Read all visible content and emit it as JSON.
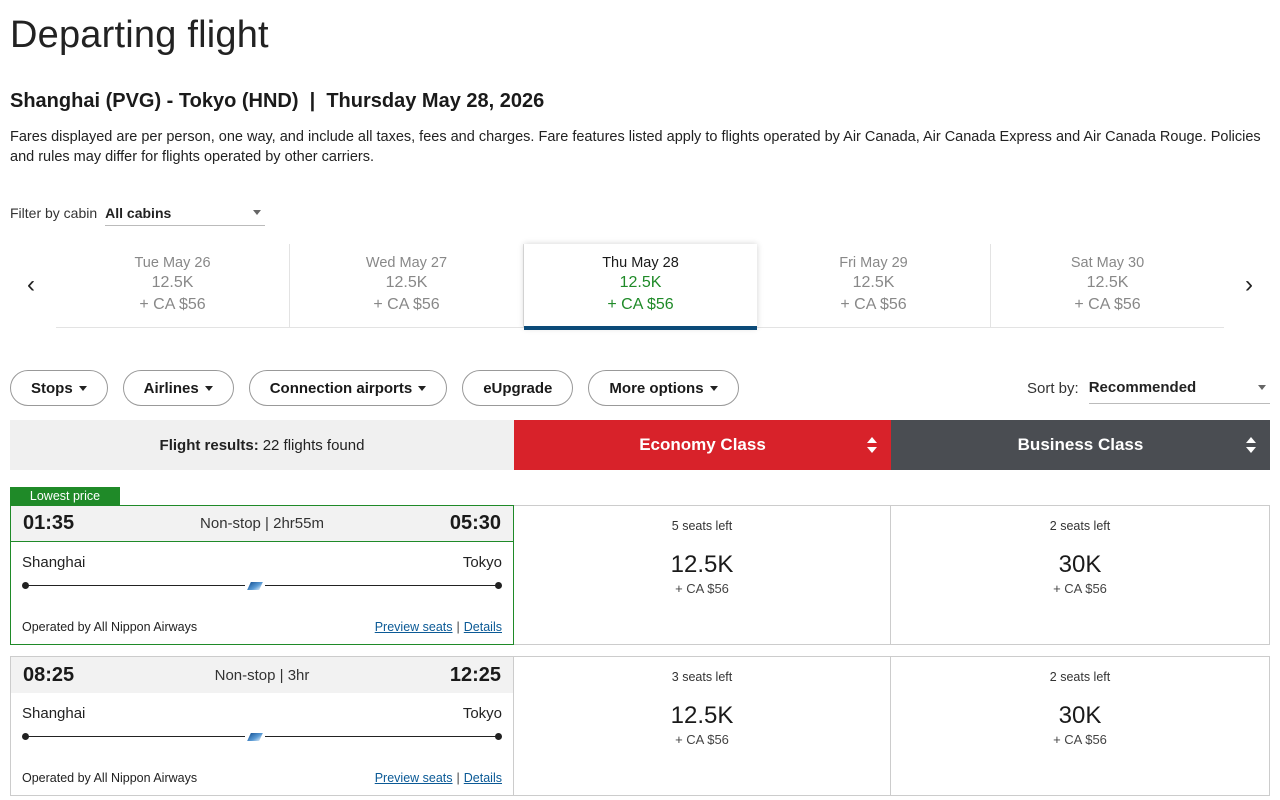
{
  "page": {
    "title": "Departing flight",
    "route": "Shanghai (PVG) - Tokyo (HND)  |  Thursday May 28, 2026",
    "disclaimer": "Fares displayed are per person, one way, and include all taxes, fees and charges. Fare features listed apply to flights operated by Air Canada, Air Canada Express and Air Canada Rouge. Policies and rules may differ for flights operated by other carriers."
  },
  "cabin_filter": {
    "label": "Filter by cabin",
    "value": "All cabins"
  },
  "dates": [
    {
      "date": "Tue May 26",
      "points": "12.5K",
      "taxes": "+ CA $56"
    },
    {
      "date": "Wed May 27",
      "points": "12.5K",
      "taxes": "+ CA $56"
    },
    {
      "date": "Thu May 28",
      "points": "12.5K",
      "taxes": "+ CA $56",
      "selected": true
    },
    {
      "date": "Fri May 29",
      "points": "12.5K",
      "taxes": "+ CA $56"
    },
    {
      "date": "Sat May 30",
      "points": "12.5K",
      "taxes": "+ CA $56"
    }
  ],
  "filters": {
    "stops": "Stops",
    "airlines": "Airlines",
    "connection_airports": "Connection airports",
    "eupgrade": "eUpgrade",
    "more_options": "More options"
  },
  "sort": {
    "label": "Sort by:",
    "value": "Recommended"
  },
  "results": {
    "label": "Flight results:",
    "count": "22 flights found",
    "economy": "Economy Class",
    "business": "Business Class"
  },
  "lowest_badge": "Lowest price",
  "flights": [
    {
      "depart": "01:35",
      "duration": "Non-stop | 2hr55m",
      "arrive": "05:30",
      "origin": "Shanghai",
      "destination": "Tokyo",
      "operator": "Operated by All Nippon Airways",
      "preview": "Preview seats",
      "details": "Details",
      "economy": {
        "seats": "5 seats left",
        "points": "12.5K",
        "taxes": "+ CA $56"
      },
      "business": {
        "seats": "2 seats left",
        "points": "30K",
        "taxes": "+ CA $56"
      }
    },
    {
      "depart": "08:25",
      "duration": "Non-stop | 3hr",
      "arrive": "12:25",
      "origin": "Shanghai",
      "destination": "Tokyo",
      "operator": "Operated by All Nippon Airways",
      "preview": "Preview seats",
      "details": "Details",
      "economy": {
        "seats": "3 seats left",
        "points": "12.5K",
        "taxes": "+ CA $56"
      },
      "business": {
        "seats": "2 seats left",
        "points": "30K",
        "taxes": "+ CA $56"
      }
    }
  ],
  "colors": {
    "economy_header": "#d8222a",
    "business_header": "#4a4d52",
    "lowest_price_green": "#1f8a28",
    "selected_date_underline": "#0b4a78",
    "link_blue": "#0b5a96"
  },
  "icons": {
    "prev_date": "chevron-left-icon",
    "next_date": "chevron-right-icon",
    "dropdown": "caret-down-icon",
    "sort_toggle": "sort-updown-icon",
    "airline_logo": "ana-logo-icon"
  }
}
